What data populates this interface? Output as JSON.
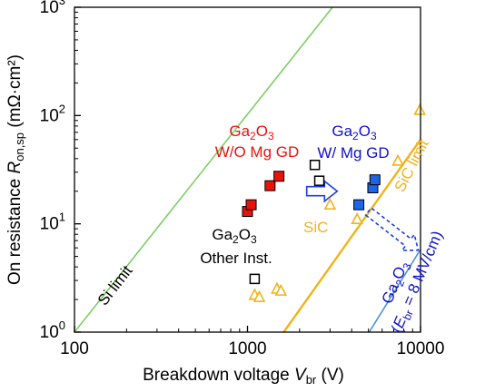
{
  "chart_data": {
    "type": "scatter",
    "x_scale": "log",
    "y_scale": "log",
    "xlim": [
      100,
      10000
    ],
    "ylim": [
      1,
      1000
    ],
    "grid": false,
    "x_ticks": [
      {
        "value": 100,
        "label": "100"
      },
      {
        "value": 1000,
        "label": "1000"
      },
      {
        "value": 10000,
        "label": "10000"
      }
    ],
    "y_ticks": [
      {
        "value": 1,
        "base": "10",
        "exp": "0"
      },
      {
        "value": 10,
        "base": "10",
        "exp": "1"
      },
      {
        "value": 100,
        "base": "10",
        "exp": "2"
      },
      {
        "value": 1000,
        "base": "10",
        "exp": "3"
      }
    ],
    "xlabel": {
      "text": "Breakdown voltage ",
      "var": "V",
      "sub": "br",
      "unit": " (V)"
    },
    "ylabel": {
      "text": "On resistance ",
      "var": "R",
      "sub": "on,sp",
      "unit": " (mΩ·cm²)"
    },
    "colors": {
      "red": "#e8120c",
      "blue": "#1f64e6",
      "black": "#000000",
      "orange": "#f2b21b",
      "green": "#7ccf62",
      "steel": "#4a8fd4",
      "darkblue": "#1010c8",
      "arrow": "#1a3fe0"
    },
    "series": [
      {
        "marker": "filled-square",
        "color": "#e8120c",
        "points": [
          [
            1000,
            13
          ],
          [
            1050,
            15
          ],
          [
            1350,
            22.5
          ],
          [
            1520,
            27.5
          ]
        ]
      },
      {
        "marker": "filled-square",
        "color": "#1f64e6",
        "points": [
          [
            4400,
            15
          ],
          [
            5300,
            21.5
          ],
          [
            5450,
            25.5
          ]
        ]
      },
      {
        "marker": "open-square",
        "color": "#000000",
        "points": [
          [
            2450,
            35
          ],
          [
            2600,
            25
          ],
          [
            1100,
            3.1
          ]
        ]
      },
      {
        "marker": "open-triangle",
        "color": "#f2b21b",
        "points": [
          [
            1100,
            2.2
          ],
          [
            1170,
            2.1
          ],
          [
            1480,
            2.5
          ],
          [
            1560,
            2.4
          ],
          [
            4300,
            11
          ],
          [
            7400,
            38
          ],
          [
            9900,
            112
          ],
          [
            3000,
            15
          ]
        ]
      }
    ],
    "lines": [
      {
        "name": "Si limit",
        "color": "#7ccf62",
        "points": [
          [
            100,
            1
          ],
          [
            3100,
            1000
          ]
        ]
      },
      {
        "name": "SiC limit",
        "color": "#f2b21b",
        "points": [
          [
            1620,
            1
          ],
          [
            10000,
            60
          ]
        ]
      },
      {
        "name": "Ga2O3 (Ebr = 8 MV/cm)",
        "color": "#4a8fd4",
        "points": [
          [
            5050,
            1
          ],
          [
            10000,
            5.8
          ]
        ]
      }
    ],
    "arrows": [
      {
        "style": "solid",
        "from": [
          2200,
          20
        ],
        "to": [
          3300,
          20
        ]
      },
      {
        "style": "dashed",
        "from": [
          5000,
          13
        ],
        "to": [
          9700,
          5.7
        ]
      }
    ],
    "annotations": {
      "red_group": {
        "line1_a": "Ga",
        "line1_sub": "2",
        "line1_b": "O",
        "line1_sub2": "3",
        "line2": "W/O Mg GD",
        "color": "#e8120c"
      },
      "blue_group": {
        "line1_a": "Ga",
        "line1_sub": "2",
        "line1_b": "O",
        "line1_sub2": "3",
        "line2": "W/ Mg GD",
        "color": "#1010c8"
      },
      "other_group": {
        "line1_a": "Ga",
        "line1_sub": "2",
        "line1_b": "O",
        "line1_sub2": "3",
        "line2": "Other Inst.",
        "color": "#000000"
      },
      "sic_label": {
        "text": "SiC",
        "color": "#f2b21b"
      },
      "si_limit": {
        "text": "Si limit",
        "color": "#000000"
      },
      "sic_limit": {
        "text": "SiC limit",
        "color": "#f2b21b"
      },
      "ga2o3_limit": {
        "line1_a": "Ga",
        "line1_sub": "2",
        "line1_b": "O",
        "line1_sub2": "3",
        "line2_open": "(",
        "line2_var": "E",
        "line2_sub": "br",
        "line2_rest": " = 8 MV/cm)",
        "color": "#1010c8"
      }
    }
  }
}
